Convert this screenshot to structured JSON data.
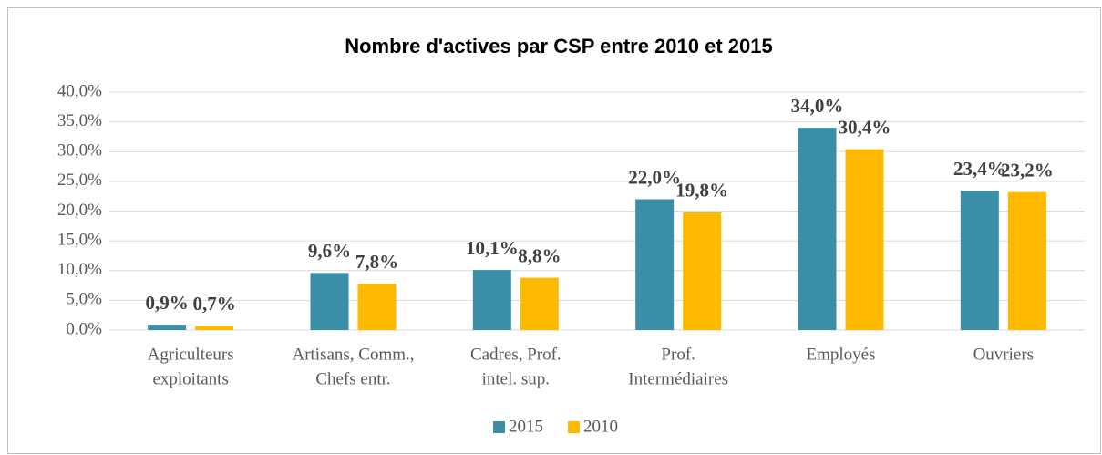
{
  "chart_data": {
    "type": "bar",
    "title": "Nombre d'actives par CSP entre 2010 et 2015",
    "categories": [
      [
        "Agriculteurs",
        "exploitants"
      ],
      [
        "Artisans, Comm.,",
        "Chefs entr."
      ],
      [
        "Cadres, Prof.",
        "intel. sup."
      ],
      [
        "Prof.",
        "Intermédiaires"
      ],
      [
        "Employés"
      ],
      [
        "Ouvriers"
      ]
    ],
    "series": [
      {
        "name": "2015",
        "color": "#3a8fa6",
        "values": [
          0.9,
          9.6,
          10.1,
          22.0,
          34.0,
          23.4
        ],
        "value_labels": [
          "0,9%",
          "9,6%",
          "10,1%",
          "22,0%",
          "34,0%",
          "23,4%"
        ]
      },
      {
        "name": "2010",
        "color": "#ffb900",
        "values": [
          0.7,
          7.8,
          8.8,
          19.8,
          30.4,
          23.2
        ],
        "value_labels": [
          "0,7%",
          "7,8%",
          "8,8%",
          "19,8%",
          "30,4%",
          "23,2%"
        ]
      }
    ],
    "ylim": [
      0,
      40
    ],
    "yticks": [
      {
        "value": 0,
        "label": "0,0%"
      },
      {
        "value": 5,
        "label": "5,0%"
      },
      {
        "value": 10,
        "label": "10,0%"
      },
      {
        "value": 15,
        "label": "15,0%"
      },
      {
        "value": 20,
        "label": "20,0%"
      },
      {
        "value": 25,
        "label": "25,0%"
      },
      {
        "value": 30,
        "label": "30,0%"
      },
      {
        "value": 35,
        "label": "35,0%"
      },
      {
        "value": 40,
        "label": "40,0%"
      }
    ],
    "grid": true,
    "legend": "bottom"
  }
}
